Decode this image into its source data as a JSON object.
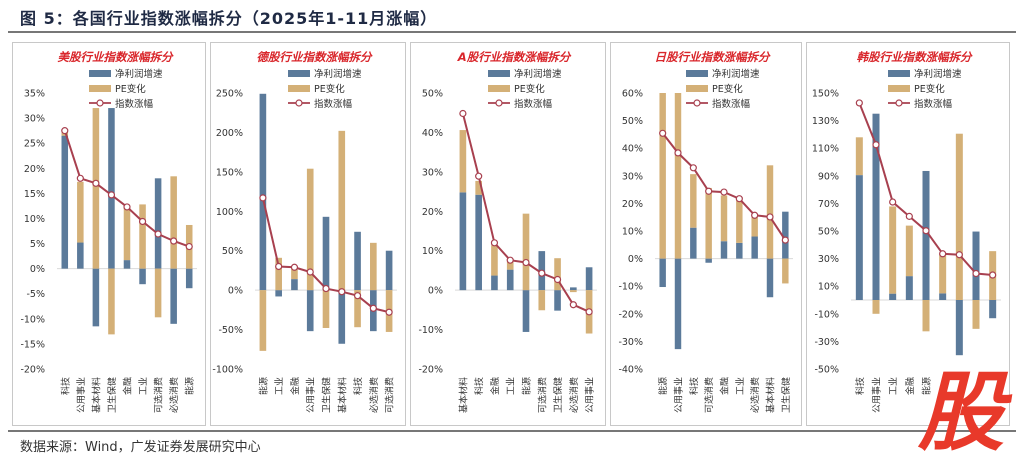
{
  "figure": {
    "title": "图 5：各国行业指数涨幅拆分（2025年1-11月涨幅）",
    "source": "数据来源：Wind，广发证券发展研究中心",
    "watermark": "股"
  },
  "legend": {
    "profit": "净利润增速",
    "pe": "PE变化",
    "index": "指数涨幅"
  },
  "colors": {
    "profit": "#5b7a9a",
    "pe": "#d4b077",
    "index_line": "#a8404f",
    "title_red": "#d9262b"
  },
  "chart_data": [
    {
      "type": "bar",
      "title": "美股行业指数涨幅拆分",
      "ylim": [
        -20,
        35
      ],
      "yticks": [
        35,
        30,
        25,
        20,
        15,
        10,
        5,
        0,
        -5,
        -10,
        -15,
        -20
      ],
      "ytick_labels": [
        "35%",
        "30%",
        "25%",
        "20%",
        "15%",
        "10%",
        "5%",
        "0%",
        "-5%",
        "-10%",
        "-15%",
        "-20%"
      ],
      "categories": [
        "科技",
        "公用事业",
        "基本材料",
        "卫生保健",
        "金融",
        "工业",
        "可选消费",
        "必选消费",
        "能源"
      ],
      "series": [
        {
          "name": "净利润增速",
          "values": [
            26.5,
            5.2,
            -11.5,
            32,
            1.7,
            -3.1,
            18,
            -11,
            -3.9
          ]
        },
        {
          "name": "PE变化",
          "values": [
            0.8,
            12.1,
            32,
            -13.1,
            10.4,
            12.8,
            -9.7,
            18.4,
            8.7
          ]
        },
        {
          "name": "指数涨幅",
          "values": [
            27.5,
            18,
            17,
            14.7,
            12.3,
            9.4,
            6.9,
            5.5,
            4.4
          ]
        }
      ]
    },
    {
      "type": "bar",
      "title": "德股行业指数涨幅拆分",
      "ylim": [
        -100,
        250
      ],
      "yticks": [
        250,
        200,
        150,
        100,
        50,
        0,
        -50,
        -100
      ],
      "ytick_labels": [
        "250%",
        "200%",
        "150%",
        "100%",
        "50%",
        "0%",
        "-50%",
        "-100%"
      ],
      "categories": [
        "能源",
        "工业",
        "金融",
        "公用事业",
        "卫生保健",
        "基本材料",
        "科技",
        "必选消费",
        "可选消费"
      ],
      "series": [
        {
          "name": "净利润增速",
          "values": [
            249,
            -8,
            14,
            -52,
            93,
            -68,
            74,
            -52,
            50
          ]
        },
        {
          "name": "PE变化",
          "values": [
            -77,
            41,
            16,
            154,
            -48,
            202,
            -47,
            60,
            -53
          ]
        },
        {
          "name": "指数涨幅",
          "values": [
            117,
            30,
            29,
            23,
            2,
            -2,
            -7,
            -23,
            -28
          ]
        }
      ]
    },
    {
      "type": "bar",
      "title": "A股行业指数涨幅拆分",
      "ylim": [
        -20,
        50
      ],
      "yticks": [
        50,
        40,
        30,
        20,
        10,
        0,
        -10,
        -20
      ],
      "ytick_labels": [
        "50%",
        "40%",
        "30%",
        "20%",
        "10%",
        "0%",
        "-10%",
        "-20%"
      ],
      "categories": [
        "基本材料",
        "科技",
        "金融",
        "工业",
        "能源",
        "可选消费",
        "卫生保健",
        "必选消费",
        "公用事业"
      ],
      "series": [
        {
          "name": "净利润增速",
          "values": [
            24.8,
            24.2,
            3.7,
            5.2,
            -10.6,
            9.9,
            -5.2,
            0.7,
            5.8
          ]
        },
        {
          "name": "PE变化",
          "values": [
            15.8,
            3.5,
            7.7,
            2.5,
            19.4,
            -5.1,
            8.1,
            -0.5,
            -11.0
          ]
        },
        {
          "name": "指数涨幅",
          "values": [
            44.8,
            28.9,
            12.0,
            7.6,
            7.0,
            4.3,
            2.7,
            -3.7,
            -5.5
          ]
        }
      ]
    },
    {
      "type": "bar",
      "title": "日股行业指数涨幅拆分",
      "ylim": [
        -40,
        60
      ],
      "yticks": [
        60,
        50,
        40,
        30,
        20,
        10,
        0,
        -10,
        -20,
        -30,
        -40
      ],
      "ytick_labels": [
        "60%",
        "50%",
        "40%",
        "30%",
        "20%",
        "10%",
        "0%",
        "-10%",
        "-20%",
        "-30%",
        "-40%"
      ],
      "categories": [
        "能源",
        "公用事业",
        "科技",
        "可选消费",
        "金融",
        "工业",
        "必选消费",
        "基本材料",
        "卫生保健"
      ],
      "series": [
        {
          "name": "净利润增速",
          "values": [
            -10.3,
            -32.8,
            11.2,
            -1.5,
            6.3,
            5.7,
            8.0,
            -14.0,
            17.0
          ]
        },
        {
          "name": "PE变化",
          "values": [
            60,
            60,
            19.4,
            25.6,
            16.6,
            15.5,
            7.8,
            33.8,
            -9.0
          ]
        },
        {
          "name": "指数涨幅",
          "values": [
            45.4,
            38.3,
            32.9,
            24.4,
            24.1,
            21.7,
            15.7,
            15.1,
            6.7
          ]
        }
      ]
    },
    {
      "type": "bar",
      "title": "韩股行业指数涨幅拆分",
      "ylim": [
        -50,
        150
      ],
      "yticks": [
        150,
        130,
        110,
        90,
        70,
        50,
        30,
        10,
        -10,
        -30,
        -50
      ],
      "ytick_labels": [
        "150%",
        "130%",
        "110%",
        "90%",
        "70%",
        "50%",
        "30%",
        "10%",
        "-10%",
        "-30%",
        "-50%"
      ],
      "categories": [
        "科技",
        "公用事业",
        "工业",
        "金融",
        "能源",
        "",
        "",
        "",
        ""
      ],
      "series": [
        {
          "name": "净利润增速",
          "values": [
            90.5,
            135,
            4.6,
            17.3,
            93.5,
            4.8,
            -40,
            49.6,
            -13.2
          ]
        },
        {
          "name": "PE变化",
          "values": [
            27.4,
            -10,
            63.2,
            36.6,
            -22.7,
            28.4,
            120.5,
            -20.9,
            35.4
          ]
        },
        {
          "name": "指数涨幅",
          "values": [
            142.8,
            112.5,
            71,
            60.6,
            50.2,
            33.5,
            32.8,
            19.2,
            18.1
          ]
        }
      ]
    }
  ]
}
